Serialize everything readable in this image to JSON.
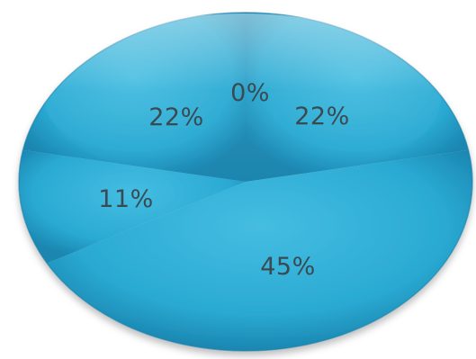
{
  "chart_data": {
    "type": "pie",
    "categories": [
      "",
      "",
      "",
      "",
      ""
    ],
    "values": [
      0,
      22,
      45,
      11,
      22
    ],
    "data_labels": [
      "0%",
      "22%",
      "45%",
      "11%",
      "22%"
    ],
    "title": "",
    "legend": "none",
    "style": "3d-glossy",
    "colors": {
      "slice_fill": "#2aaad3",
      "slice_highlight": "#7fd4ec",
      "slice_shadow": "#1a7fa6",
      "label": "#3a4a52"
    }
  }
}
